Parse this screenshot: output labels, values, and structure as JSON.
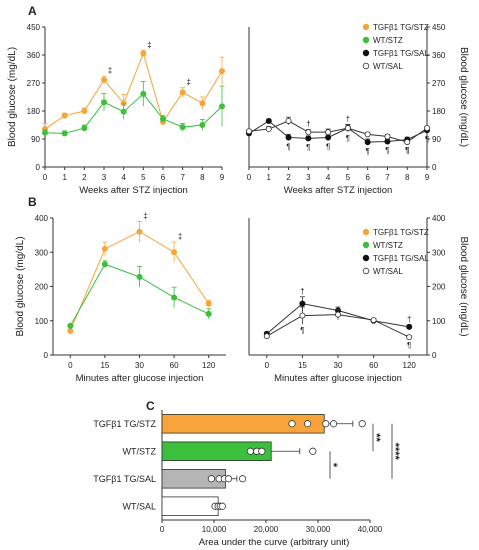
{
  "panel_labels": {
    "a": "A",
    "b": "B",
    "c": "C"
  },
  "colors": {
    "tg_stz": "#f7a53a",
    "wt_stz": "#3cbf3c",
    "tg_sal": "#111111",
    "wt_sal": "#ffffff",
    "tg_sal_bar": "#b5b5b5",
    "line": "#333333"
  },
  "chart_data": [
    {
      "type": "line",
      "title": "A (left)",
      "xlabel": "Weeks after STZ injection",
      "ylabel": "Blood glucose (mg/dL)",
      "x": [
        0,
        1,
        2,
        3,
        4,
        5,
        6,
        7,
        8,
        9
      ],
      "xticks": [
        "0",
        "1",
        "2",
        "3",
        "4",
        "5",
        "6",
        "7",
        "8",
        "9"
      ],
      "ylim": [
        0,
        450
      ],
      "yticks": [
        "0",
        "90",
        "180",
        "270",
        "360",
        "450"
      ],
      "series": [
        {
          "name": "TGFβ1 TG/STZ",
          "values": [
            122,
            165,
            180,
            280,
            205,
            365,
            145,
            240,
            205,
            308
          ],
          "errors": [
            18,
            8,
            10,
            12,
            28,
            10,
            10,
            15,
            20,
            45
          ]
        },
        {
          "name": "WT/STZ",
          "values": [
            110,
            108,
            125,
            208,
            178,
            235,
            155,
            128,
            135,
            195
          ],
          "errors": [
            10,
            8,
            10,
            28,
            25,
            40,
            10,
            12,
            18,
            65
          ]
        }
      ],
      "annotations": [
        {
          "x": 3,
          "text": "‡"
        },
        {
          "x": 5,
          "text": "‡"
        },
        {
          "x": 7,
          "text": "‡"
        }
      ]
    },
    {
      "type": "line",
      "title": "A (right)",
      "xlabel": "Weeks after STZ injection",
      "ylabel": "Blood glucose (mg/dL)",
      "x": [
        0,
        1,
        2,
        3,
        4,
        5,
        6,
        7,
        8,
        9
      ],
      "xticks": [
        "0",
        "1",
        "2",
        "3",
        "4",
        "5",
        "6",
        "7",
        "8",
        "9"
      ],
      "ylim": [
        0,
        450
      ],
      "yticks": [
        "0",
        "90",
        "180",
        "270",
        "360",
        "450"
      ],
      "legend": [
        "TGFβ1 TG/STZ",
        "WT/STZ",
        "TGFβ1 TG/SAL",
        "WT/SAL"
      ],
      "series": [
        {
          "name": "TGFβ1 TG/SAL",
          "values": [
            108,
            148,
            95,
            92,
            95,
            125,
            80,
            82,
            88,
            118
          ],
          "errors": [
            8,
            6,
            10,
            8,
            10,
            12,
            10,
            8,
            8,
            8
          ]
        },
        {
          "name": "WT/SAL",
          "values": [
            115,
            122,
            148,
            112,
            112,
            125,
            105,
            98,
            80,
            125
          ],
          "errors": [
            6,
            8,
            12,
            8,
            10,
            10,
            6,
            6,
            6,
            6
          ]
        }
      ],
      "annotations": [
        {
          "x": 2,
          "text": "¶"
        },
        {
          "x": 3,
          "text": "¶"
        },
        {
          "x": 3,
          "text": "†"
        },
        {
          "x": 4,
          "text": "¶"
        },
        {
          "x": 5,
          "text": "†"
        },
        {
          "x": 5,
          "text": "¶"
        },
        {
          "x": 6,
          "text": "¶"
        },
        {
          "x": 7,
          "text": "¶"
        },
        {
          "x": 8,
          "text": "¶"
        },
        {
          "x": 8,
          "text": "¶"
        },
        {
          "x": 9,
          "text": "¶"
        }
      ]
    },
    {
      "type": "line",
      "title": "B (left)",
      "xlabel": "Minutes after glucose injection",
      "ylabel": "Blood glucose (mg/dL)",
      "x": [
        0,
        15,
        30,
        60,
        120
      ],
      "xticks": [
        "0",
        "15",
        "30",
        "60",
        "120"
      ],
      "ylim": [
        0,
        400
      ],
      "yticks": [
        "0",
        "100",
        "200",
        "300",
        "400"
      ],
      "series": [
        {
          "name": "TGFβ1 TG/STZ",
          "values": [
            70,
            310,
            360,
            300,
            150
          ],
          "errors": [
            5,
            20,
            30,
            30,
            10
          ]
        },
        {
          "name": "WT/STZ",
          "values": [
            85,
            265,
            228,
            168,
            120
          ],
          "errors": [
            5,
            10,
            30,
            30,
            15
          ]
        }
      ],
      "annotations": [
        {
          "x": 30,
          "text": "‡"
        },
        {
          "x": 60,
          "text": "‡"
        }
      ]
    },
    {
      "type": "line",
      "title": "B (right)",
      "xlabel": "Minutes after glucose injection",
      "ylabel": "Blood glucose (mg/dL)",
      "x": [
        0,
        15,
        30,
        60,
        120
      ],
      "xticks": [
        "0",
        "15",
        "30",
        "60",
        "120"
      ],
      "ylim": [
        0,
        400
      ],
      "yticks": [
        "0",
        "100",
        "200",
        "300",
        "400"
      ],
      "legend": [
        "TGFβ1 TG/STZ",
        "WT/STZ",
        "TGFβ1 TG/SAL",
        "WT/SAL"
      ],
      "series": [
        {
          "name": "TGFβ1 TG/SAL",
          "values": [
            62,
            150,
            130,
            100,
            82
          ],
          "errors": [
            5,
            20,
            10,
            6,
            6
          ]
        },
        {
          "name": "WT/SAL",
          "values": [
            55,
            115,
            118,
            102,
            52
          ],
          "errors": [
            5,
            25,
            15,
            5,
            5
          ]
        }
      ],
      "annotations": [
        {
          "x": 15,
          "text": "¶"
        },
        {
          "x": 15,
          "text": "†"
        },
        {
          "x": 120,
          "text": "¶"
        },
        {
          "x": 120,
          "text": "†"
        }
      ]
    },
    {
      "type": "bar",
      "title": "C",
      "orientation": "horizontal",
      "xlabel": "Area under the curve (arbitrary unit)",
      "xlim": [
        0,
        40000
      ],
      "xticks": [
        "0",
        "10,000",
        "20,000",
        "30,000",
        "40,000"
      ],
      "categories": [
        "TGFβ1 TG/STZ",
        "WT/STZ",
        "TGFβ1 TG/SAL",
        "WT/SAL"
      ],
      "values": [
        31200,
        21000,
        12200,
        10800
      ],
      "errors": [
        5500,
        5500,
        2200,
        800
      ],
      "points": [
        [
          25000,
          28000,
          31500,
          33000,
          38500
        ],
        [
          17000,
          18200,
          19200,
          29000
        ],
        [
          9500,
          11000,
          12000,
          12800,
          15500
        ],
        [
          10200,
          10800,
          11200,
          11600
        ]
      ],
      "significance": [
        {
          "between": [
            "TGFβ1 TG/STZ",
            "WT/STZ"
          ],
          "label": "**"
        },
        {
          "between": [
            "TGFβ1 TG/STZ",
            "TGFβ1 TG/SAL"
          ],
          "label": "****"
        },
        {
          "between": [
            "WT/STZ",
            "TGFβ1 TG/SAL"
          ],
          "label": "*"
        }
      ]
    }
  ]
}
